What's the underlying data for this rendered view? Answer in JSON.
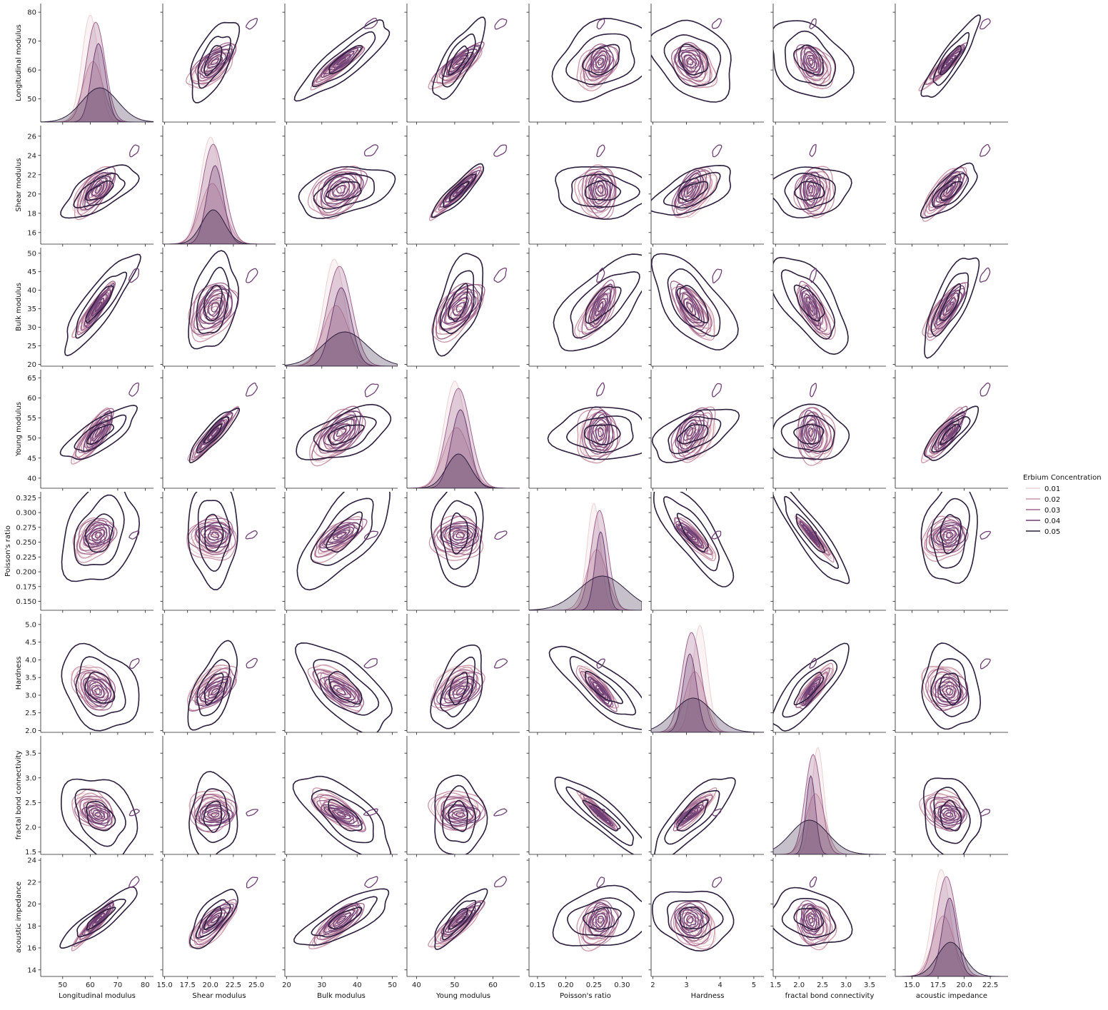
{
  "chart_data": {
    "type": "pairplot-kde",
    "variables": [
      {
        "name": "Longitudinal modulus",
        "range": [
          42,
          83
        ],
        "ticks": [
          50,
          60,
          70,
          80
        ],
        "tick_labels": [
          "50",
          "60",
          "70",
          "80"
        ],
        "yticks": [
          50,
          60,
          70,
          80
        ],
        "ytick_labels": [
          "50",
          "60",
          "70",
          "80"
        ]
      },
      {
        "name": "Shear modulus",
        "range": [
          14.8,
          27.1
        ],
        "ticks": [
          15.0,
          17.5,
          20.0,
          22.5,
          25.0
        ],
        "tick_labels": [
          "15.0",
          "17.5",
          "20.0",
          "22.5",
          "25.0"
        ],
        "yticks": [
          16,
          18,
          20,
          22,
          24,
          26
        ],
        "ytick_labels": [
          "16",
          "18",
          "20",
          "22",
          "24",
          "26"
        ]
      },
      {
        "name": "Bulk modulus",
        "range": [
          19.5,
          51.5
        ],
        "ticks": [
          20,
          30,
          40,
          50
        ],
        "tick_labels": [
          "20",
          "30",
          "40",
          "50"
        ],
        "yticks": [
          20,
          25,
          30,
          35,
          40,
          45,
          50
        ],
        "ytick_labels": [
          "20",
          "25",
          "30",
          "35",
          "40",
          "45",
          "50"
        ]
      },
      {
        "name": "Young modulus",
        "range": [
          37.5,
          67
        ],
        "ticks": [
          40,
          50,
          60
        ],
        "tick_labels": [
          "40",
          "50",
          "60"
        ],
        "yticks": [
          40,
          45,
          50,
          55,
          60,
          65
        ],
        "ytick_labels": [
          "40",
          "45",
          "50",
          "55",
          "60",
          "65"
        ]
      },
      {
        "name": "Poisson's ratio",
        "range": [
          0.135,
          0.335
        ],
        "ticks": [
          0.15,
          0.2,
          0.25,
          0.3
        ],
        "tick_labels": [
          "0.15",
          "0.20",
          "0.25",
          "0.30"
        ],
        "yticks": [
          0.15,
          0.175,
          0.2,
          0.225,
          0.25,
          0.275,
          0.3,
          0.325
        ],
        "ytick_labels": [
          "0.150",
          "0.175",
          "0.200",
          "0.225",
          "0.250",
          "0.275",
          "0.300",
          "0.325"
        ]
      },
      {
        "name": "Hardness",
        "range": [
          1.95,
          5.3
        ],
        "ticks": [
          2,
          3,
          4,
          5
        ],
        "tick_labels": [
          "2",
          "3",
          "4",
          "5"
        ],
        "yticks": [
          2.0,
          2.5,
          3.0,
          3.5,
          4.0,
          4.5,
          5.0
        ],
        "ytick_labels": [
          "2.0",
          "2.5",
          "3.0",
          "3.5",
          "4.0",
          "4.5",
          "5.0"
        ]
      },
      {
        "name": "fractal bond connectivity",
        "range": [
          1.45,
          3.85
        ],
        "ticks": [
          1.5,
          2.0,
          2.5,
          3.0,
          3.5
        ],
        "tick_labels": [
          "1.5",
          "2.0",
          "2.5",
          "3.0",
          "3.5"
        ],
        "yticks": [
          1.5,
          2.0,
          2.5,
          3.0,
          3.5
        ],
        "ytick_labels": [
          "1.5",
          "2.0",
          "2.5",
          "3.0",
          "3.5"
        ]
      },
      {
        "name": "acoustic impedance",
        "range": [
          13.4,
          24.2
        ],
        "ticks": [
          15.0,
          17.5,
          20.0,
          22.5
        ],
        "tick_labels": [
          "15.0",
          "17.5",
          "20.0",
          "22.5"
        ],
        "yticks": [
          14,
          16,
          18,
          20,
          22,
          24
        ],
        "ytick_labels": [
          "14",
          "16",
          "18",
          "20",
          "22",
          "24"
        ]
      }
    ],
    "hue": {
      "title": "Erbium Concentration",
      "levels": [
        "0.01",
        "0.02",
        "0.03",
        "0.04",
        "0.05"
      ],
      "colors": [
        "#ecd2d5",
        "#cc97a9",
        "#a0668f",
        "#6e3f74",
        "#2d1e3e"
      ]
    },
    "groups": [
      {
        "level": "0.01",
        "means": [
          60,
          20.0,
          33.5,
          50,
          0.25,
          3.4,
          2.4,
          17.8
        ],
        "sds": [
          3.0,
          1.1,
          3.0,
          2.8,
          0.012,
          0.22,
          0.13,
          0.85
        ]
      },
      {
        "level": "0.02",
        "means": [
          61,
          20.2,
          34,
          50.5,
          0.255,
          3.25,
          2.35,
          18.0
        ],
        "sds": [
          3.6,
          1.3,
          3.6,
          3.3,
          0.018,
          0.3,
          0.2,
          1.0
        ]
      },
      {
        "level": "0.03",
        "means": [
          62,
          20.3,
          35,
          51,
          0.26,
          3.15,
          2.3,
          18.3
        ],
        "sds": [
          3.4,
          1.2,
          3.5,
          3.1,
          0.015,
          0.28,
          0.17,
          0.95
        ]
      },
      {
        "level": "0.04",
        "means": [
          63,
          20.5,
          35.5,
          51.5,
          0.262,
          3.1,
          2.25,
          18.6
        ],
        "sds": [
          2.6,
          0.9,
          2.8,
          2.4,
          0.01,
          0.2,
          0.1,
          0.7
        ]
      },
      {
        "level": "0.05",
        "means": [
          63.5,
          20.3,
          36.5,
          51,
          0.265,
          3.2,
          2.22,
          18.7
        ],
        "sds": [
          6.2,
          1.2,
          6.0,
          3.0,
          0.04,
          0.55,
          0.38,
          1.2
        ]
      }
    ],
    "outlier_cluster": {
      "level": "0.04",
      "center": [
        76,
        24.5,
        44,
        62,
        0.262,
        3.9,
        2.3,
        22.0
      ]
    },
    "correlations": [
      [
        1,
        0.7,
        0.95,
        0.85,
        0.35,
        -0.3,
        -0.35,
        0.96
      ],
      [
        0.7,
        1,
        0.4,
        0.97,
        -0.05,
        0.65,
        0.05,
        0.8
      ],
      [
        0.95,
        0.4,
        1,
        0.6,
        0.75,
        -0.7,
        -0.75,
        0.85
      ],
      [
        0.85,
        0.97,
        0.6,
        1,
        0.05,
        0.55,
        -0.05,
        0.9
      ],
      [
        0.35,
        -0.05,
        0.75,
        0.05,
        1,
        -0.9,
        -0.99,
        0.2
      ],
      [
        -0.3,
        0.65,
        -0.7,
        0.55,
        -0.9,
        1,
        0.9,
        -0.1
      ],
      [
        -0.35,
        0.05,
        -0.75,
        -0.05,
        -0.99,
        0.9,
        1,
        -0.2
      ],
      [
        0.96,
        0.8,
        0.85,
        0.9,
        0.2,
        -0.1,
        -0.2,
        1
      ]
    ],
    "legend_placement": "right"
  }
}
